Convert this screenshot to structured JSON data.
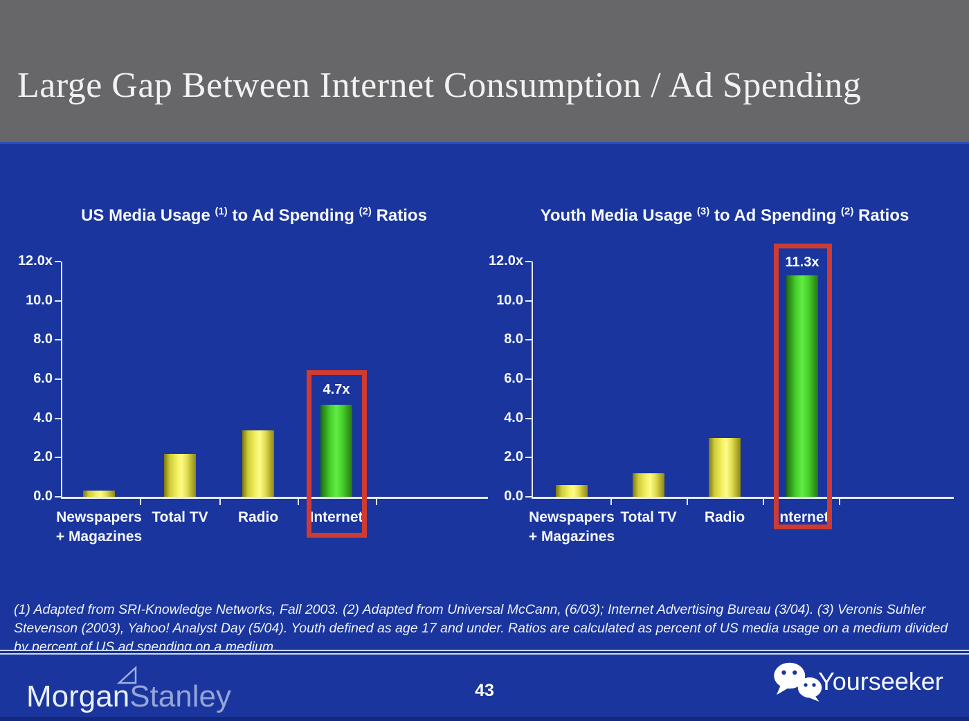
{
  "slide": {
    "title": "Large Gap Between Internet Consumption / Ad Spending",
    "page_number": "43",
    "footnote_lines": [
      "(1) Adapted from SRI-Knowledge Networks, Fall 2003.  (2) Adapted from Universal McCann, (6/03); Internet Advertising Bureau (3/04). (3) Veronis Suhler",
      "Stevenson (2003), Yahoo! Analyst Day (5/04).  Youth defined as age 17 and under.  Ratios are calculated as percent of US media usage on a medium divided",
      "by percent of US ad spending on a medium."
    ]
  },
  "branding": {
    "logo_part1": "Morgan",
    "logo_part2": "Stanley",
    "logo_right": "Yourseeker"
  },
  "colors": {
    "background": "#1a359e",
    "header_gray": "#67676a",
    "bar_yellow": "#f4f163",
    "bar_green": "#55e23a",
    "highlight_red": "#ce3b33",
    "text": "#ffffff"
  },
  "chart_data": [
    {
      "type": "bar",
      "title_parts": [
        {
          "text": "US Media Usage ",
          "sup": false
        },
        {
          "text": "(1)",
          "sup": true
        },
        {
          "text": " to Ad Spending ",
          "sup": false
        },
        {
          "text": "(2)",
          "sup": true
        },
        {
          "text": " Ratios",
          "sup": false
        }
      ],
      "title_plain": "US Media Usage (1) to Ad Spending (2) Ratios",
      "categories": [
        [
          "Newspapers",
          "+ Magazines"
        ],
        [
          "Total TV"
        ],
        [
          "Radio"
        ],
        [
          "Internet"
        ]
      ],
      "values": [
        0.3,
        2.2,
        3.4,
        4.7
      ],
      "bar_colors": [
        "yellow",
        "yellow",
        "yellow",
        "green"
      ],
      "highlight_index": 3,
      "highlight_label": "4.7x",
      "ylim": [
        0,
        12
      ],
      "yticks": [
        "12.0x",
        "10.0",
        "8.0",
        "6.0",
        "4.0",
        "2.0",
        "0.0"
      ],
      "grid": false,
      "legend": false
    },
    {
      "type": "bar",
      "title_parts": [
        {
          "text": "Youth Media Usage ",
          "sup": false
        },
        {
          "text": "(3)",
          "sup": true
        },
        {
          "text": " to Ad Spending ",
          "sup": false
        },
        {
          "text": "(2)",
          "sup": true
        },
        {
          "text": " Ratios",
          "sup": false
        }
      ],
      "title_plain": "Youth Media Usage (3) to Ad Spending (2) Ratios",
      "categories": [
        [
          "Newspapers",
          "+ Magazines"
        ],
        [
          "Total TV"
        ],
        [
          "Radio"
        ],
        [
          "Internet"
        ]
      ],
      "values": [
        0.6,
        1.2,
        3.0,
        11.3
      ],
      "bar_colors": [
        "yellow",
        "yellow",
        "yellow",
        "green"
      ],
      "highlight_index": 3,
      "highlight_label": "11.3x",
      "ylim": [
        0,
        12
      ],
      "yticks": [
        "12.0x",
        "10.0",
        "8.0",
        "6.0",
        "4.0",
        "2.0",
        "0.0"
      ],
      "grid": false,
      "legend": false
    }
  ]
}
